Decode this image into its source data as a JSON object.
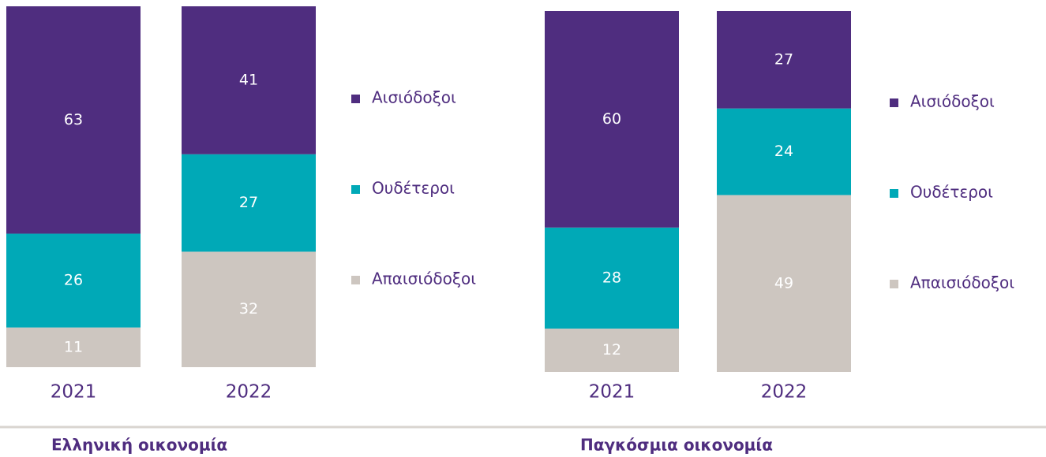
{
  "chart_data": [
    {
      "type": "stacked_bar",
      "title": "Ελληνική οικονομία",
      "categories": [
        "2021",
        "2022"
      ],
      "ylim": [
        0,
        100
      ],
      "series": [
        {
          "name": "Απαισιόδοξοι",
          "color": "#cdc6c0",
          "values": [
            11,
            32
          ]
        },
        {
          "name": "Ουδέτεροι",
          "color": "#00a9b7",
          "values": [
            26,
            27
          ]
        },
        {
          "name": "Αισιόδοξοι",
          "color": "#4f2d7f",
          "values": [
            63,
            41
          ]
        }
      ]
    },
    {
      "type": "stacked_bar",
      "title": "Παγκόσμια οικονομία",
      "categories": [
        "2021",
        "2022"
      ],
      "ylim": [
        0,
        100
      ],
      "series": [
        {
          "name": "Απαισιόδοξοι",
          "color": "#cdc6c0",
          "values": [
            12,
            49
          ]
        },
        {
          "name": "Ουδέτεροι",
          "color": "#00a9b7",
          "values": [
            28,
            24
          ]
        },
        {
          "name": "Αισιόδοξοι",
          "color": "#4f2d7f",
          "values": [
            60,
            27
          ]
        }
      ]
    }
  ]
}
